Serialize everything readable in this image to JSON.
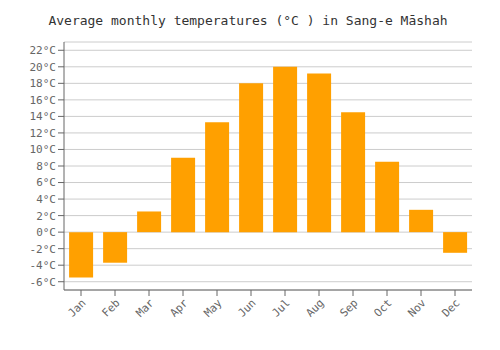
{
  "chart_data": {
    "type": "bar",
    "title": "Average monthly temperatures (°C ) in Sang-e Māshah",
    "categories": [
      "Jan",
      "Feb",
      "Mar",
      "Apr",
      "May",
      "Jun",
      "Jul",
      "Aug",
      "Sep",
      "Oct",
      "Nov",
      "Dec"
    ],
    "values": [
      -5.5,
      -3.7,
      2.5,
      9.0,
      13.3,
      18.0,
      20.0,
      19.2,
      14.5,
      8.5,
      2.7,
      -2.5
    ],
    "color": "#FFA000",
    "ylim": [
      -7,
      23
    ],
    "yticks": [
      {
        "value": -6,
        "label": "-6°C"
      },
      {
        "value": -4,
        "label": "-4°C"
      },
      {
        "value": -2,
        "label": "-2°C"
      },
      {
        "value": 0,
        "label": "0°C"
      },
      {
        "value": 2,
        "label": "2°C"
      },
      {
        "value": 4,
        "label": "4°C"
      },
      {
        "value": 6,
        "label": "6°C"
      },
      {
        "value": 8,
        "label": "8°C"
      },
      {
        "value": 10,
        "label": "10°C"
      },
      {
        "value": 12,
        "label": "12°C"
      },
      {
        "value": 14,
        "label": "14°C"
      },
      {
        "value": 16,
        "label": "16°C"
      },
      {
        "value": 18,
        "label": "18°C"
      },
      {
        "value": 20,
        "label": "20°C"
      },
      {
        "value": 22,
        "label": "22°C"
      }
    ],
    "grid": true
  }
}
